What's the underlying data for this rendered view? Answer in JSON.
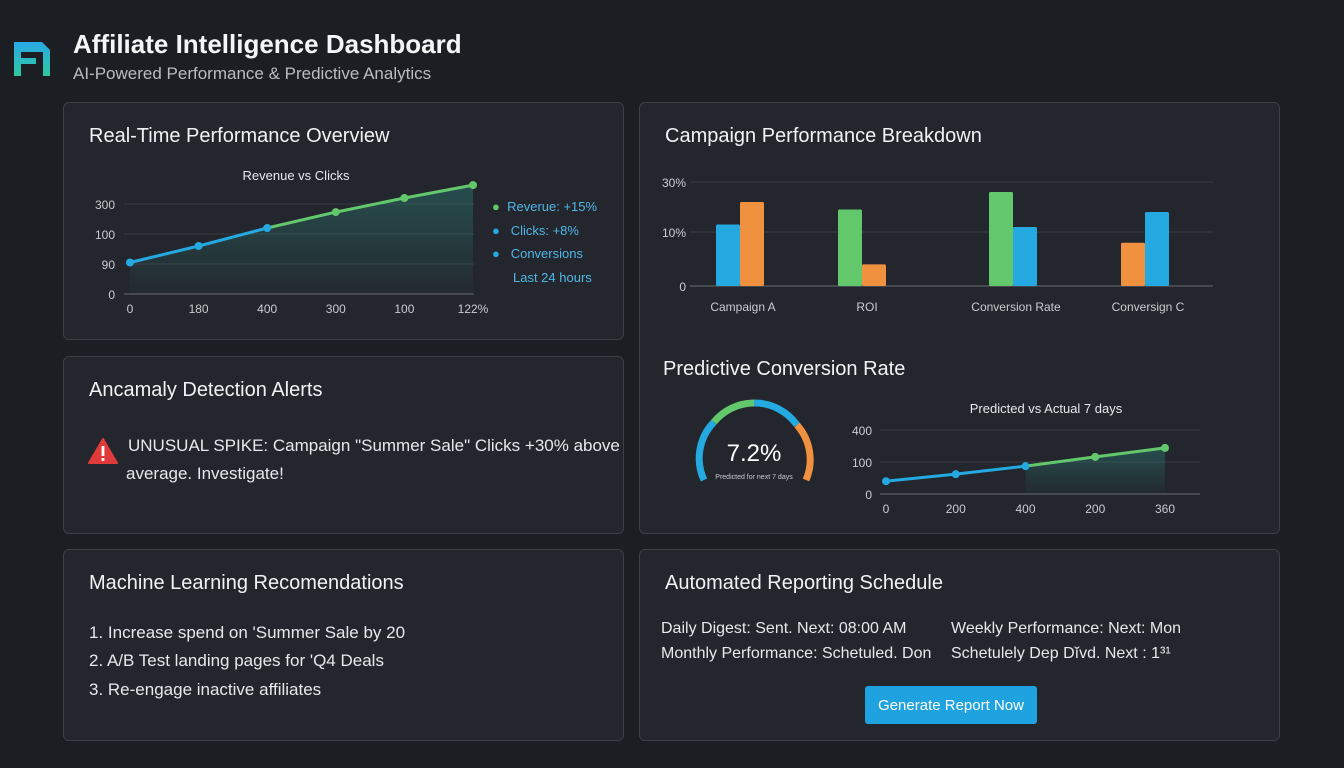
{
  "header": {
    "title": "Affiliate Intelligence Dashboard",
    "subtitle": "AI-Powered Performance & Predictive Analytics",
    "logo_icon": "logo-mark"
  },
  "colors": {
    "blue": "#24a9e1",
    "green": "#63c86c",
    "orange": "#f0913f",
    "alert": "#e03a3a",
    "background": "#1b1e23",
    "card": "#23262c"
  },
  "overview": {
    "title": "Real-Time Performance Overview",
    "legend": [
      {
        "label": "Reverue: +15%",
        "color": "#63c86c"
      },
      {
        "label": "Clicks: +8%",
        "color": "#24a9e1"
      },
      {
        "label": "Conversions",
        "color": "#24a9e1"
      }
    ],
    "legend_note": "Last 24 hours"
  },
  "anomaly": {
    "title": "Ancamaly Detection Alerts",
    "icon": "warning-triangle",
    "line1": "UNUSUAL SPIKE: Campaign \"Summer Sale\" Clicks +30% above",
    "line2": "average. Investigate!"
  },
  "ml": {
    "title": "Machine Learning Recomendations",
    "items": [
      "1. Increase spend on 'Summer Sale by 20",
      "2. A/B Test landing pages for 'Q4 Deals",
      "3. Re-engage inactive affiliates"
    ]
  },
  "campaign": {
    "title": "Campaign Performance Breakdown"
  },
  "predictive": {
    "title": "Predictive Conversion Rate",
    "gauge_value": "7.2%",
    "gauge_label": "Predicted for next 7 days"
  },
  "reporting": {
    "title": "Automated Reporting Schedule",
    "rows": [
      [
        "Daily Digest: Sent. Next: 08:00 AM",
        "Weekly Performance: Next: Mon"
      ],
      [
        "Monthly Performance: Schetuled. Don",
        "Schetulely Dep Dĭvd. Next : 1³¹"
      ]
    ],
    "button": "Generate Report Now"
  },
  "chart_data": [
    {
      "type": "line",
      "title": "Revenue vs Clicks",
      "x_ticks": [
        "0",
        "180",
        "400",
        "300",
        "100",
        "122%"
      ],
      "y_ticks": [
        "0",
        "90",
        "100",
        "300"
      ],
      "y_scale": "ordinal tick levels",
      "points_y_level": [
        1.05,
        1.6,
        2.2,
        2.73,
        3.2,
        3.63
      ],
      "segment_colors": [
        "#24a9e1",
        "#24a9e1",
        "#63c86c",
        "#63c86c",
        "#63c86c"
      ],
      "area_fill": true,
      "grid": true
    },
    {
      "type": "bar",
      "categories": [
        "Campaign A",
        "ROI",
        "Conversion Rate",
        "Conversign C"
      ],
      "y_ticks": [
        "0",
        "10%",
        "30%"
      ],
      "bars": [
        [
          {
            "value": 13,
            "color": "#24a9e1"
          },
          {
            "value": 22,
            "color": "#f0913f"
          }
        ],
        [
          {
            "value": 19,
            "color": "#63c86c"
          },
          {
            "value": 4,
            "color": "#f0913f"
          }
        ],
        [
          {
            "value": 26,
            "color": "#63c86c"
          },
          {
            "value": 12,
            "color": "#24a9e1"
          }
        ],
        [
          {
            "value": 8,
            "color": "#f0913f"
          },
          {
            "value": 18,
            "color": "#24a9e1"
          }
        ]
      ],
      "grid": true
    },
    {
      "type": "line",
      "title": "Predicted vs Actual 7 days",
      "x_ticks": [
        "0",
        "200",
        "400",
        "200",
        "360"
      ],
      "y_ticks": [
        "0",
        "100",
        "400"
      ],
      "y_scale": "ordinal tick levels",
      "points_y_level": [
        0.4,
        0.62,
        0.87,
        1.16,
        1.44
      ],
      "segment_colors": [
        "#24a9e1",
        "#24a9e1",
        "#63c86c",
        "#63c86c"
      ],
      "area_fill": true,
      "grid": true
    }
  ]
}
